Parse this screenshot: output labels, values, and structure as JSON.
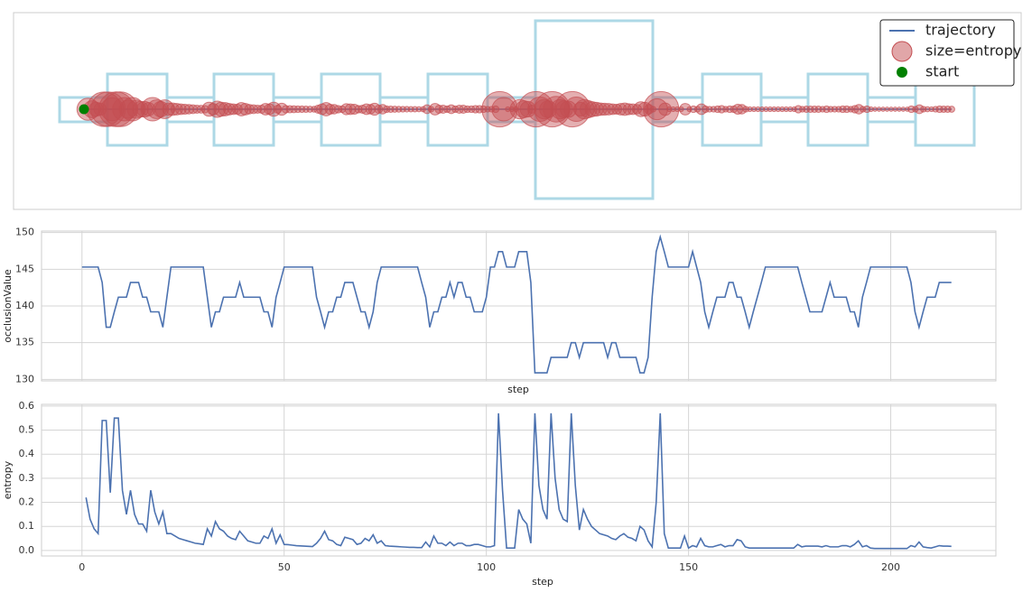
{
  "chart_data": [
    {
      "type": "map",
      "legend": "upper right",
      "series": [
        {
          "name": "trajectory",
          "color": "#4c72b0"
        },
        {
          "name": "size=entropy",
          "color": "#c44e52"
        },
        {
          "name": "start",
          "color": "#008000"
        }
      ]
    },
    {
      "type": "line",
      "xlabel": "step",
      "ylabel": "occlusionValue",
      "grid": true,
      "x": [
        0,
        1,
        2,
        3,
        4,
        5,
        6,
        7,
        8,
        9,
        10,
        11,
        12,
        13,
        14,
        15,
        16,
        17,
        18,
        19,
        20,
        21,
        22,
        23,
        24,
        25,
        26,
        27,
        28,
        29,
        30,
        31,
        32,
        33,
        34,
        35,
        36,
        37,
        38,
        39,
        40,
        41,
        42,
        43,
        44,
        45,
        46,
        47,
        48,
        49,
        50,
        51,
        52,
        53,
        54,
        55,
        56,
        57,
        58,
        59,
        60,
        61,
        62,
        63,
        64,
        65,
        66,
        67,
        68,
        69,
        70,
        71,
        72,
        73,
        74,
        75,
        76,
        77,
        78,
        79,
        80,
        81,
        82,
        83,
        84,
        85,
        86,
        87,
        88,
        89,
        90,
        91,
        92,
        93,
        94,
        95,
        96,
        97,
        98,
        99,
        100,
        101,
        102,
        103,
        104,
        105,
        106,
        107,
        108,
        109,
        110,
        111,
        112,
        113,
        114,
        115,
        116,
        117,
        118,
        119,
        120,
        121,
        122,
        123,
        124,
        125,
        126,
        127,
        128,
        129,
        130,
        131,
        132,
        133,
        134,
        135,
        136,
        137,
        138,
        139,
        140,
        141,
        142,
        143,
        144,
        145,
        146,
        147,
        148,
        149,
        150,
        151,
        152,
        153,
        154,
        155,
        156,
        157,
        158,
        159,
        160,
        161,
        162,
        163,
        164,
        165,
        166,
        167,
        168,
        169,
        170,
        171,
        172,
        173,
        174,
        175,
        176,
        177,
        178,
        179,
        180,
        181,
        182,
        183,
        184,
        185,
        186,
        187,
        188,
        189,
        190,
        191,
        192,
        193,
        194,
        195,
        196,
        197,
        198,
        199,
        200,
        201,
        202,
        203,
        204,
        205,
        206,
        207,
        208,
        209,
        210,
        211,
        212,
        213,
        214,
        215
      ],
      "xlim": [
        -10,
        226
      ],
      "ylim": [
        129.8,
        150.2
      ],
      "yticks": [
        130,
        135,
        140,
        145,
        150
      ],
      "series": [
        {
          "color": "#4c72b0",
          "values": [
            145.3,
            145.3,
            145.3,
            145.3,
            145.3,
            143.2,
            137.1,
            137.1,
            139.2,
            141.2,
            141.2,
            141.2,
            143.2,
            143.2,
            143.2,
            141.2,
            141.2,
            139.2,
            139.2,
            139.2,
            137.1,
            141.2,
            145.3,
            145.3,
            145.3,
            145.3,
            145.3,
            145.3,
            145.3,
            145.3,
            145.3,
            141.2,
            137.1,
            139.2,
            139.2,
            141.2,
            141.2,
            141.2,
            141.2,
            143.2,
            141.2,
            141.2,
            141.2,
            141.2,
            141.2,
            139.2,
            139.2,
            137.1,
            141.2,
            143.2,
            145.3,
            145.3,
            145.3,
            145.3,
            145.3,
            145.3,
            145.3,
            145.3,
            141.2,
            139.2,
            137.1,
            139.2,
            139.2,
            141.2,
            141.2,
            143.2,
            143.2,
            143.2,
            141.2,
            139.2,
            139.2,
            137.1,
            139.2,
            143.2,
            145.3,
            145.3,
            145.3,
            145.3,
            145.3,
            145.3,
            145.3,
            145.3,
            145.3,
            145.3,
            143.2,
            141.2,
            137.1,
            139.2,
            139.2,
            141.2,
            141.2,
            143.2,
            141.2,
            143.2,
            143.2,
            141.2,
            141.2,
            139.2,
            139.2,
            139.2,
            141.2,
            145.3,
            145.3,
            147.4,
            147.4,
            145.3,
            145.3,
            145.3,
            147.4,
            147.4,
            147.4,
            143.2,
            130.9,
            130.9,
            130.9,
            130.9,
            133,
            133,
            133,
            133,
            133,
            135,
            135,
            133,
            135,
            135,
            135,
            135,
            135,
            135,
            133,
            135,
            135,
            133,
            133,
            133,
            133,
            133,
            130.9,
            130.9,
            133,
            141.2,
            147.4,
            149.4,
            147.4,
            145.3,
            145.3,
            145.3,
            145.3,
            145.3,
            145.3,
            147.4,
            145.3,
            143.2,
            139.2,
            137.1,
            139.2,
            141.2,
            141.2,
            141.2,
            143.2,
            143.2,
            141.2,
            141.2,
            139.2,
            137.1,
            139.2,
            141.2,
            143.2,
            145.3,
            145.3,
            145.3,
            145.3,
            145.3,
            145.3,
            145.3,
            145.3,
            145.3,
            143.2,
            141.2,
            139.2,
            139.2,
            139.2,
            139.2,
            141.2,
            143.2,
            141.2,
            141.2,
            141.2,
            141.2,
            139.2,
            139.2,
            137.1,
            141.2,
            143.2,
            145.3,
            145.3,
            145.3,
            145.3,
            145.3,
            145.3,
            145.3,
            145.3,
            145.3,
            145.3,
            143.2,
            139.2,
            137.1,
            139.2,
            141.2,
            141.2,
            141.2,
            143.2,
            143.2,
            143.2,
            143.2
          ]
        }
      ]
    },
    {
      "type": "line",
      "xlabel": "step",
      "ylabel": "entropy",
      "grid": true,
      "xlim": [
        -10,
        226
      ],
      "xticks": [
        0,
        50,
        100,
        150,
        200
      ],
      "ylim": [
        -0.023,
        0.607
      ],
      "yticks": [
        0.0,
        0.1,
        0.2,
        0.3,
        0.4,
        0.5,
        0.6
      ],
      "ytick_labels": [
        "0.0",
        "0.1",
        "0.2",
        "0.3",
        "0.4",
        "0.5",
        "0.6"
      ],
      "series": [
        {
          "color": "#4c72b0",
          "values": [
            null,
            0.22,
            0.13,
            0.09,
            0.07,
            0.54,
            0.54,
            0.24,
            0.55,
            0.55,
            0.25,
            0.15,
            0.25,
            0.15,
            0.11,
            0.11,
            0.08,
            0.25,
            0.16,
            0.11,
            0.16,
            0.07,
            0.07,
            0.06,
            0.05,
            0.045,
            0.04,
            0.035,
            0.03,
            0.028,
            0.025,
            0.09,
            0.06,
            0.12,
            0.09,
            0.08,
            0.06,
            0.05,
            0.045,
            0.08,
            0.06,
            0.04,
            0.035,
            0.03,
            0.03,
            0.06,
            0.05,
            0.09,
            0.03,
            0.065,
            0.025,
            0.024,
            0.022,
            0.02,
            0.019,
            0.018,
            0.017,
            0.016,
            0.03,
            0.05,
            0.08,
            0.045,
            0.04,
            0.025,
            0.02,
            0.055,
            0.05,
            0.045,
            0.025,
            0.03,
            0.05,
            0.04,
            0.065,
            0.03,
            0.04,
            0.02,
            0.018,
            0.017,
            0.016,
            0.015,
            0.014,
            0.013,
            0.013,
            0.012,
            0.012,
            0.035,
            0.015,
            0.06,
            0.03,
            0.03,
            0.02,
            0.035,
            0.02,
            0.03,
            0.03,
            0.02,
            0.02,
            0.025,
            0.025,
            0.02,
            0.015,
            0.015,
            0.02,
            0.57,
            0.25,
            0.01,
            0.01,
            0.01,
            0.17,
            0.13,
            0.11,
            0.03,
            0.57,
            0.27,
            0.17,
            0.13,
            0.57,
            0.3,
            0.17,
            0.13,
            0.12,
            0.57,
            0.27,
            0.085,
            0.17,
            0.13,
            0.1,
            0.085,
            0.07,
            0.065,
            0.06,
            0.05,
            0.045,
            0.06,
            0.07,
            0.055,
            0.05,
            0.04,
            0.1,
            0.085,
            0.04,
            0.015,
            0.2,
            0.57,
            0.07,
            0.01,
            0.01,
            0.01,
            0.01,
            0.06,
            0.01,
            0.02,
            0.015,
            0.05,
            0.02,
            0.015,
            0.015,
            0.02,
            0.025,
            0.015,
            0.02,
            0.02,
            0.045,
            0.04,
            0.015,
            0.01,
            0.01,
            0.01,
            0.01,
            0.01,
            0.01,
            0.01,
            0.01,
            0.01,
            0.01,
            0.01,
            0.01,
            0.025,
            0.015,
            0.018,
            0.018,
            0.018,
            0.018,
            0.015,
            0.02,
            0.015,
            0.015,
            0.015,
            0.02,
            0.02,
            0.015,
            0.025,
            0.04,
            0.015,
            0.02,
            0.01,
            0.008,
            0.008,
            0.008,
            0.008,
            0.008,
            0.008,
            0.008,
            0.008,
            0.008,
            0.02,
            0.015,
            0.035,
            0.015,
            0.012,
            0.01,
            0.015,
            0.02,
            0.018,
            0.018,
            0.017
          ]
        }
      ]
    }
  ]
}
